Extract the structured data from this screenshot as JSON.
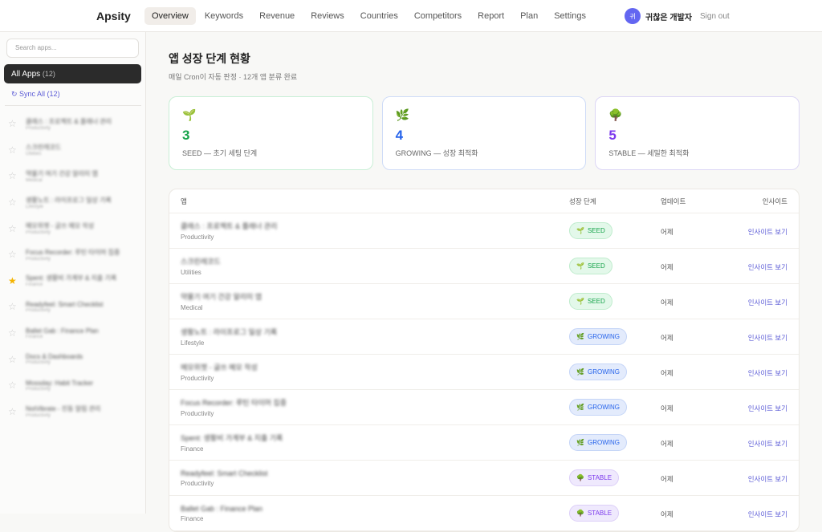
{
  "header": {
    "logo": "Apsity",
    "nav": [
      "Overview",
      "Keywords",
      "Revenue",
      "Reviews",
      "Countries",
      "Competitors",
      "Report",
      "Plan",
      "Settings"
    ],
    "active": "Overview",
    "avatar": "귀",
    "user": "귀찮은 개발자",
    "signout": "Sign out"
  },
  "sidebar": {
    "search_placeholder": "Search apps...",
    "all_apps": "All Apps",
    "all_count": "(12)",
    "sync": "↻ Sync All (12)",
    "apps": [
      {
        "name": "클래스 : 프로젝트 & 플래너 관리",
        "cat": "Productivity",
        "starred": false
      },
      {
        "name": "스크린레코드",
        "cat": "Utilities",
        "starred": false
      },
      {
        "name": "약물기 여기 건강 알리미 앱",
        "cat": "Medical",
        "starred": false
      },
      {
        "name": "생활노트 : 라이프로그 일상 기록",
        "cat": "Lifestyle",
        "starred": false
      },
      {
        "name": "메모위젯 - 글쓰 메모 작성",
        "cat": "Productivity",
        "starred": false
      },
      {
        "name": "Focus Recorder: 루틴 타이머 집중",
        "cat": "Productivity",
        "starred": false
      },
      {
        "name": "Spent: 생활비 가계부 & 지출 기록",
        "cat": "Finance",
        "starred": true
      },
      {
        "name": "Readyfeel: Smart Checklist",
        "cat": "Productivity",
        "starred": false
      },
      {
        "name": "Ballet Gab : Finance Plan",
        "cat": "Finance",
        "starred": false
      },
      {
        "name": "Docs & Dashboards",
        "cat": "Productivity",
        "starred": false
      },
      {
        "name": "Mossday: Habit Tracker",
        "cat": "Productivity",
        "starred": false
      },
      {
        "name": "NotVibrate - 진동 알림 관리",
        "cat": "Productivity",
        "starred": false
      }
    ]
  },
  "main": {
    "title": "앱 성장 단계 현황",
    "subtitle": "매일 Cron이 자동 판정 · 12개 앱 분류 완료",
    "cards": [
      {
        "icon": "🌱",
        "count": "3",
        "label": "SEED — 초기 세팅 단계",
        "color": "#16a34a",
        "border": "#c9efd6"
      },
      {
        "icon": "🌿",
        "count": "4",
        "label": "GROWING — 성장 최적화",
        "color": "#2563eb",
        "border": "#cfdcf7"
      },
      {
        "icon": "🌳",
        "count": "5",
        "label": "STABLE — 세밀한 최적화",
        "color": "#7c3aed",
        "border": "#dcd6f5"
      }
    ],
    "table": {
      "headers": [
        "앱",
        "성장 단계",
        "업데이트",
        "인사이트"
      ],
      "rows": [
        {
          "name": "클래스 : 프로젝트 & 플래너 관리",
          "cat": "Productivity",
          "stage": "SEED",
          "updated": "어제",
          "link": "인사이트 보기"
        },
        {
          "name": "스크린레코드",
          "cat": "Utilities",
          "stage": "SEED",
          "updated": "어제",
          "link": "인사이트 보기"
        },
        {
          "name": "약물기 여기 건강 알리미 앱",
          "cat": "Medical",
          "stage": "SEED",
          "updated": "어제",
          "link": "인사이트 보기"
        },
        {
          "name": "생활노트 : 라이프로그 일상 기록",
          "cat": "Lifestyle",
          "stage": "GROWING",
          "updated": "어제",
          "link": "인사이트 보기"
        },
        {
          "name": "메모위젯 - 글쓰 메모 작성",
          "cat": "Productivity",
          "stage": "GROWING",
          "updated": "어제",
          "link": "인사이트 보기"
        },
        {
          "name": "Focus Recorder: 루틴 타이머 집중",
          "cat": "Productivity",
          "stage": "GROWING",
          "updated": "어제",
          "link": "인사이트 보기"
        },
        {
          "name": "Spent: 생활비 가계부 & 지출 기록",
          "cat": "Finance",
          "stage": "GROWING",
          "updated": "어제",
          "link": "인사이트 보기"
        },
        {
          "name": "Readyfeel: Smart Checklist",
          "cat": "Productivity",
          "stage": "STABLE",
          "updated": "어제",
          "link": "인사이트 보기"
        },
        {
          "name": "Ballet Gab : Finance Plan",
          "cat": "Finance",
          "stage": "STABLE",
          "updated": "어제",
          "link": "인사이트 보기"
        }
      ]
    },
    "stage_styles": {
      "SEED": {
        "icon": "🌱",
        "fg": "#16a34a",
        "bg": "#e3f8ea",
        "bd": "#bfeccd"
      },
      "GROWING": {
        "icon": "🌿",
        "fg": "#2563eb",
        "bg": "#e3ebfc",
        "bd": "#c5d5f7"
      },
      "STABLE": {
        "icon": "🌳",
        "fg": "#7c3aed",
        "bg": "#efe9fd",
        "bd": "#dccff8"
      }
    }
  }
}
